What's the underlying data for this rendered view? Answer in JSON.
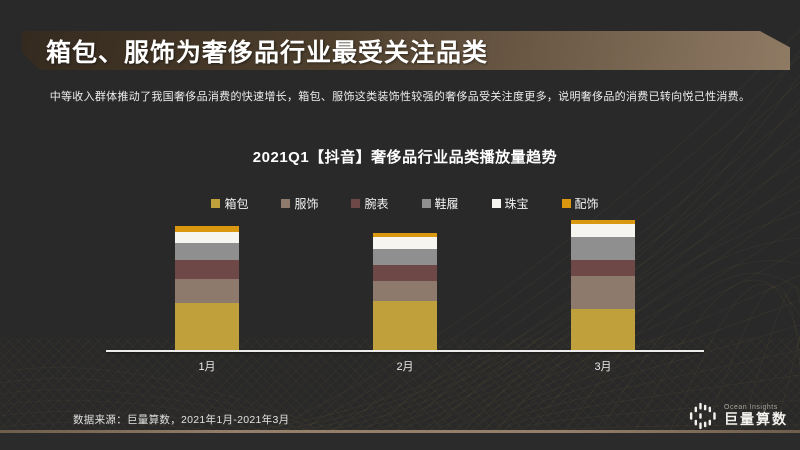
{
  "slide": {
    "title": "箱包、服饰为奢侈品行业最受关注品类",
    "subtitle": "中等收入群体推动了我国奢侈品消费的快速增长，箱包、服饰这类装饰性较强的奢侈品受关注度更多，说明奢侈品的消费已转向悦己性消费。",
    "footer_source": "数据来源：巨量算数，2021年1月-2021年3月",
    "logo": {
      "brand_en": "Ocean Insights",
      "brand_cn": "巨量算数"
    }
  },
  "chart_data": {
    "type": "bar",
    "stacked": true,
    "title": "2021Q1【抖音】奢侈品行业品类播放量趋势",
    "categories": [
      "1月",
      "2月",
      "3月"
    ],
    "series": [
      {
        "name": "箱包",
        "color": "#BFA03B",
        "values": [
          47,
          49,
          41
        ]
      },
      {
        "name": "服饰",
        "color": "#8D7A6C",
        "values": [
          24,
          20,
          33
        ]
      },
      {
        "name": "腕表",
        "color": "#6E4747",
        "values": [
          19,
          16,
          16
        ]
      },
      {
        "name": "鞋履",
        "color": "#8F8F8F",
        "values": [
          17,
          16,
          23
        ]
      },
      {
        "name": "珠宝",
        "color": "#F7F5F0",
        "values": [
          11,
          12,
          13
        ]
      },
      {
        "name": "配饰",
        "color": "#D9980F",
        "values": [
          6,
          4,
          4
        ]
      }
    ],
    "totals": [
      124,
      117,
      130
    ],
    "legend_position": "top",
    "grid": false,
    "value_axis_labels_visible": false
  },
  "colors": {
    "background": "#292929",
    "banner_gradient_start": "#352a1f",
    "banner_gradient_end": "#8f7a64",
    "axis": "#ececec",
    "bottom_rule": "#94806a",
    "mesh_accent": "#c9a24e"
  }
}
